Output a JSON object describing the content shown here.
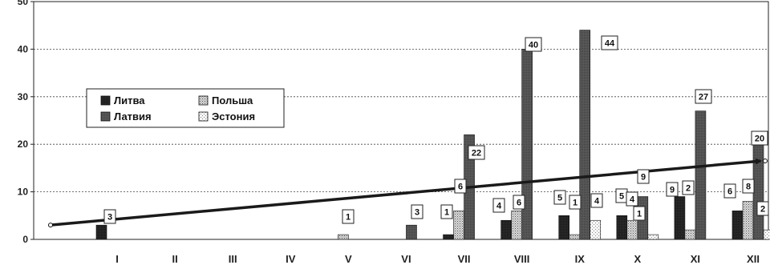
{
  "chart_data": {
    "type": "bar",
    "categories": [
      "I",
      "II",
      "III",
      "IV",
      "V",
      "VI",
      "VII",
      "VIII",
      "IX",
      "X",
      "XI",
      "XII"
    ],
    "series": [
      {
        "name": "Литва",
        "color": "#1a1a1a",
        "pattern": "solid-dark",
        "values": [
          3,
          0,
          0,
          0,
          0,
          0,
          1,
          4,
          5,
          5,
          9,
          6
        ]
      },
      {
        "name": "Польша",
        "color": "#bfbfbf",
        "pattern": "dotted",
        "values": [
          0,
          0,
          0,
          0,
          1,
          0,
          6,
          6,
          1,
          4,
          2,
          8
        ]
      },
      {
        "name": "Латвия",
        "color": "#595959",
        "pattern": "dark-grey",
        "values": [
          0,
          0,
          0,
          0,
          0,
          3,
          22,
          40,
          44,
          9,
          27,
          20
        ]
      },
      {
        "name": "Эстония",
        "color": "#ececec",
        "pattern": "light-dots",
        "values": [
          0,
          0,
          0,
          0,
          0,
          0,
          0,
          0,
          4,
          1,
          0,
          2
        ]
      }
    ],
    "data_labels": [
      {
        "category": "I",
        "text": "3"
      },
      {
        "category": "V",
        "text": "1"
      },
      {
        "category": "VI",
        "text": "3"
      },
      {
        "category": "VII",
        "text": "1"
      },
      {
        "category": "VII",
        "text": "6"
      },
      {
        "category": "VII",
        "text": "22"
      },
      {
        "category": "VIII",
        "text": "4"
      },
      {
        "category": "VIII",
        "text": "6"
      },
      {
        "category": "VIII",
        "text": "40"
      },
      {
        "category": "IX",
        "text": "5"
      },
      {
        "category": "IX",
        "text": "1"
      },
      {
        "category": "IX",
        "text": "44"
      },
      {
        "category": "IX",
        "text": "4"
      },
      {
        "category": "X",
        "text": "5"
      },
      {
        "category": "X",
        "text": "4"
      },
      {
        "category": "X",
        "text": "9"
      },
      {
        "category": "X",
        "text": "1"
      },
      {
        "category": "XI",
        "text": "9"
      },
      {
        "category": "XI",
        "text": "2"
      },
      {
        "category": "XI",
        "text": "27"
      },
      {
        "category": "XII",
        "text": "6"
      },
      {
        "category": "XII",
        "text": "8"
      },
      {
        "category": "XII",
        "text": "20"
      },
      {
        "category": "XII",
        "text": "2"
      }
    ],
    "trendline": {
      "start": 3,
      "end": 16.5
    },
    "yticks": [
      0,
      10,
      20,
      30,
      40,
      50
    ],
    "ylim": [
      0,
      50
    ],
    "grid": true,
    "legend_position": "left"
  }
}
